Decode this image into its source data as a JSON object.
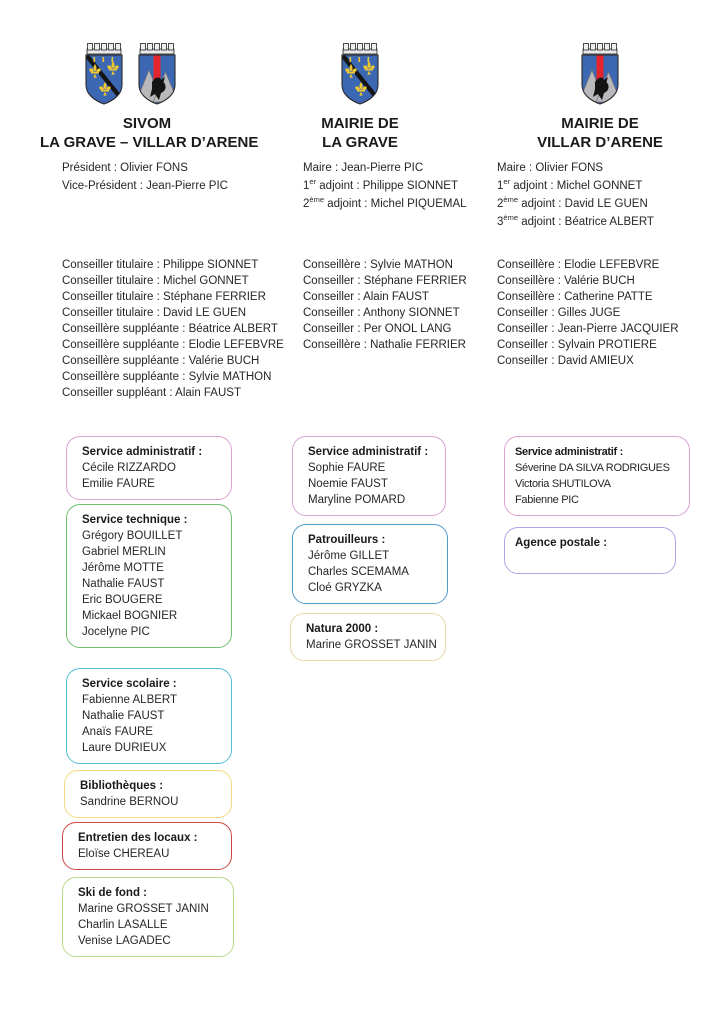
{
  "columns": [
    {
      "title_lines": [
        "SIVOM",
        "LA GRAVE – VILLAR D’ARENE"
      ],
      "officers": [
        {
          "num": "",
          "sup": "",
          "text": "Président : Olivier FONS"
        },
        {
          "num": "",
          "sup": "",
          "text": "Vice-Président : Jean-Pierre PIC"
        }
      ],
      "councillors": [
        "Conseiller titulaire : Philippe SIONNET",
        "Conseiller titulaire : Michel GONNET",
        "Conseiller titulaire : Stéphane FERRIER",
        "Conseiller titulaire : David LE GUEN",
        "Conseillère suppléante : Béatrice ALBERT",
        "Conseillère suppléante : Elodie LEFEBVRE",
        "Conseillère suppléante : Valérie BUCH",
        "Conseillère suppléante : Sylvie MATHON",
        "Conseiller suppléant : Alain FAUST"
      ],
      "boxes": [
        {
          "title": "Service administratif :",
          "border": "#d9a3d3",
          "names": [
            "Cécile RIZZARDO",
            "Emilie FAURE"
          ]
        },
        {
          "title": "Service technique :",
          "border": "#6cbf6c",
          "names": [
            "Grégory BOUILLET",
            "Gabriel MERLIN",
            "Jérôme MOTTE",
            "Nathalie FAUST",
            "Eric BOUGERE",
            "Mickael BOGNIER",
            "Jocelyne PIC"
          ]
        },
        {
          "title": "Service scolaire :",
          "border": "#57bddb",
          "names": [
            "Fabienne ALBERT",
            "Nathalie FAUST",
            "Anaïs FAURE",
            "Laure DURIEUX"
          ]
        },
        {
          "title": "Bibliothèques :",
          "border": "#f2da7e",
          "names": [
            "Sandrine BERNOU"
          ]
        },
        {
          "title": "Entretien des locaux :",
          "border": "#cb4848",
          "names": [
            "Eloïse CHEREAU"
          ]
        },
        {
          "title": "Ski de fond :",
          "border": "#b9d98b",
          "names": [
            "Marine GROSSET JANIN",
            "Charlin LASALLE",
            "Venise LAGADEC"
          ]
        }
      ]
    },
    {
      "title_lines": [
        "MAIRIE DE",
        "LA GRAVE"
      ],
      "officers": [
        {
          "num": "",
          "sup": "",
          "text": "Maire : Jean-Pierre PIC"
        },
        {
          "num": "1",
          "sup": "er",
          "text": " adjoint : Philippe SIONNET"
        },
        {
          "num": "2",
          "sup": "ème",
          "text": " adjoint : Michel PIQUEMAL"
        }
      ],
      "councillors": [
        "Conseillère : Sylvie MATHON",
        "Conseiller : Stéphane FERRIER",
        "Conseiller : Alain FAUST",
        "Conseiller : Anthony SIONNET",
        "Conseiller : Per ONOL LANG",
        "Conseillère : Nathalie FERRIER"
      ],
      "boxes": [
        {
          "title": "Service administratif :",
          "border": "#d9a3d3",
          "names": [
            "Sophie FAURE",
            "Noemie FAUST",
            "Maryline POMARD"
          ]
        },
        {
          "title": "Patrouilleurs :",
          "border": "#4f9bca",
          "names": [
            "Jérôme GILLET",
            "Charles SCEMAMA",
            "Cloé GRYZKA"
          ]
        },
        {
          "title": "Natura 2000 :",
          "border": "#e7d8a6",
          "names": [
            "Marine GROSSET JANIN"
          ]
        }
      ]
    },
    {
      "title_lines": [
        "MAIRIE DE",
        "VILLAR D’ARENE"
      ],
      "officers": [
        {
          "num": "",
          "sup": "",
          "text": "Maire : Olivier FONS"
        },
        {
          "num": "1",
          "sup": "er",
          "text": " adjoint : Michel GONNET"
        },
        {
          "num": "2",
          "sup": "ème",
          "text": " adjoint : David LE GUEN"
        },
        {
          "num": "3",
          "sup": "ème",
          "text": " adjoint : Béatrice ALBERT"
        }
      ],
      "councillors": [
        "Conseillère : Elodie LEFEBVRE",
        "Conseillère : Valérie BUCH",
        "Conseillère : Catherine PATTE",
        "Conseiller : Gilles JUGE",
        "Conseiller : Jean-Pierre JACQUIER",
        "Conseiller : Sylvain PROTIERE",
        "Conseiller : David AMIEUX"
      ],
      "boxes": [
        {
          "title": "Service administratif :",
          "border": "#d9a3d3",
          "names": [
            "Séverine DA SILVA RODRIGUES",
            "Victoria SHUTILOVA",
            "Fabienne PIC"
          ]
        },
        {
          "title": "Agence postale :",
          "border": "#b3a5e6",
          "names": []
        }
      ]
    }
  ]
}
